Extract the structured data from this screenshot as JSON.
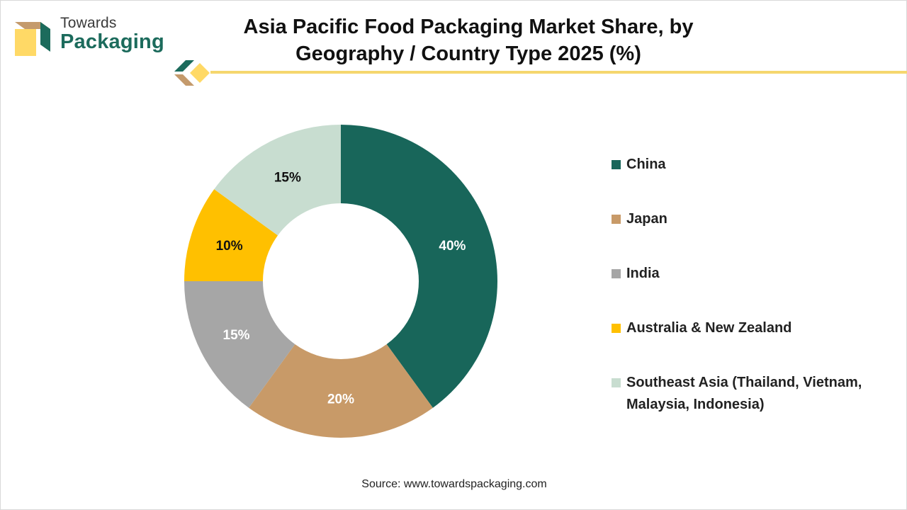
{
  "brand": {
    "line1": "Towards",
    "line2": "Packaging"
  },
  "colors": {
    "brand_green": "#1c6b5c",
    "brand_tan": "#c49a6c",
    "brand_yellow": "#ffd966",
    "rule": "#f5d76e"
  },
  "chart_data": {
    "type": "pie",
    "title": "Asia Pacific Food Packaging Market Share, by Geography / Country Type 2025 (%)",
    "categories": [
      "China",
      "Japan",
      "India",
      "Australia & New Zealand",
      "Southeast Asia (Thailand, Vietnam, Malaysia, Indonesia)"
    ],
    "values": [
      40,
      20,
      15,
      10,
      15
    ],
    "labels": [
      "40%",
      "20%",
      "15%",
      "10%",
      "15%"
    ],
    "colors": [
      "#18665a",
      "#c89a68",
      "#a6a6a6",
      "#ffc000",
      "#c8ddd0"
    ],
    "label_colors": [
      "#ffffff",
      "#ffffff",
      "#ffffff",
      "#111111",
      "#111111"
    ],
    "donut": true,
    "legend_position": "right"
  },
  "source": "Source: www.towardspackaging.com"
}
